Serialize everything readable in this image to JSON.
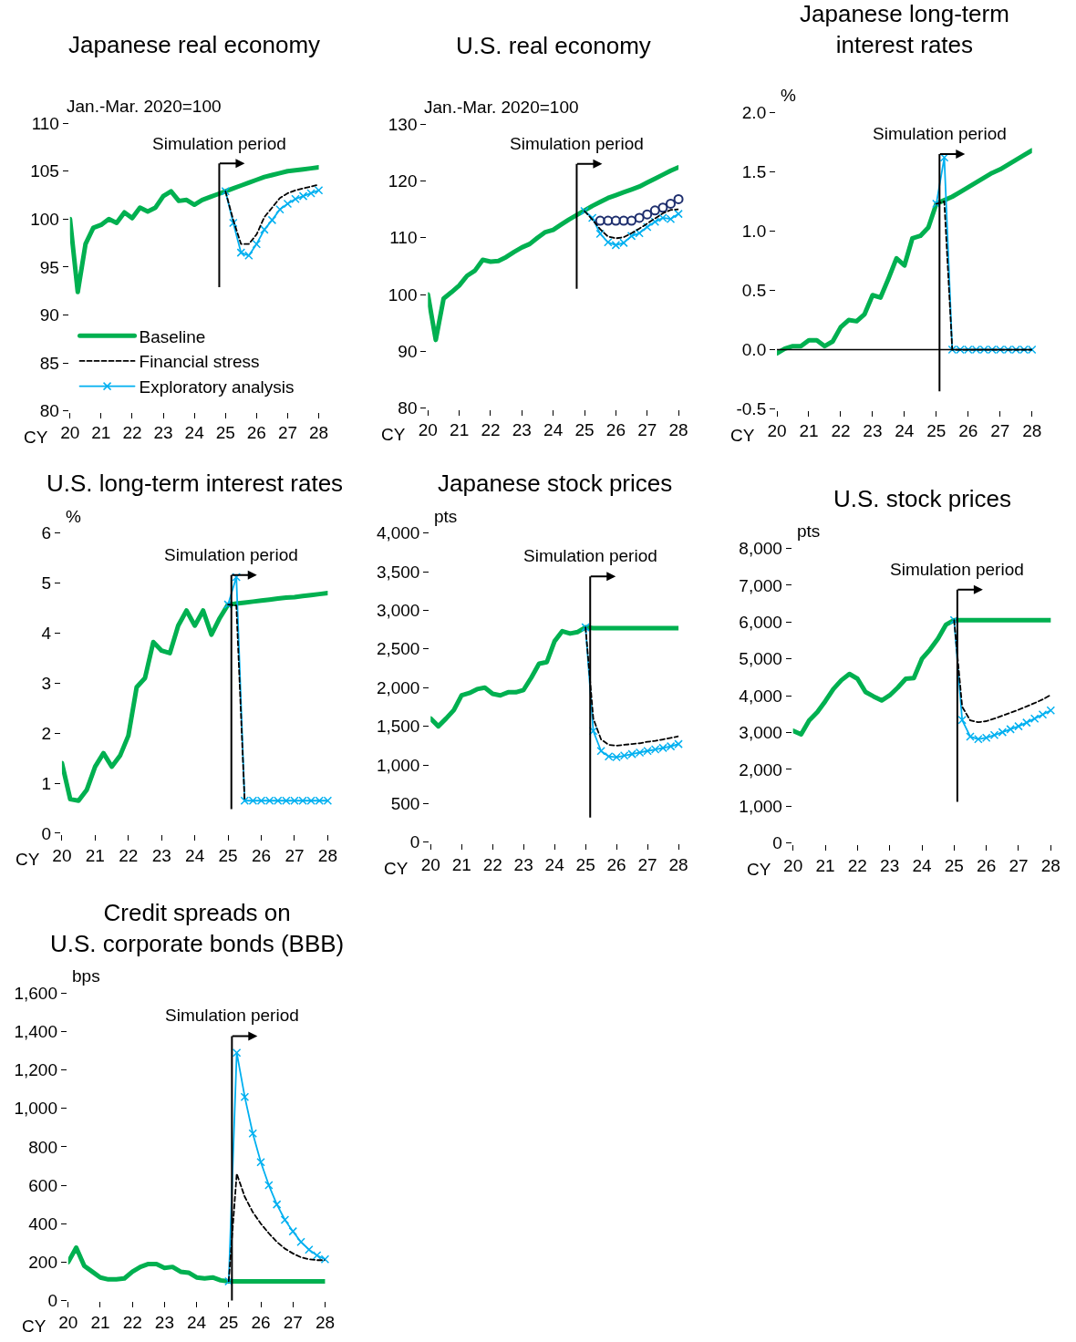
{
  "chart_data": [
    {
      "type": "line",
      "title": "Japanese real economy",
      "ylabel": "Jan.-Mar. 2020=100",
      "xlabel": "CY",
      "x": [
        20,
        20.25,
        20.5,
        20.75,
        21,
        21.25,
        21.5,
        21.75,
        22,
        22.25,
        22.5,
        22.75,
        23,
        23.25,
        23.5,
        23.75,
        24,
        24.25,
        24.5,
        24.75,
        25,
        25.25,
        25.5,
        25.75,
        26,
        26.25,
        26.5,
        26.75,
        27,
        27.25,
        27.5,
        27.75,
        28
      ],
      "xlim": [
        20,
        28
      ],
      "xticks": [
        20,
        21,
        22,
        23,
        24,
        25,
        26,
        27,
        28
      ],
      "ylim": [
        80,
        110
      ],
      "yticks": [
        80,
        85,
        90,
        95,
        100,
        105,
        110
      ],
      "legend": "bottom left",
      "ref_lines": [
        {
          "axis": "x",
          "value": 24.8,
          "label": "Simulation period"
        }
      ],
      "series": [
        {
          "name": "Baseline",
          "color": "#00b050",
          "marker": "none",
          "line_style": "solid",
          "values": [
            100,
            92.4,
            97.4,
            99.1,
            99.4,
            100.0,
            99.6,
            100.7,
            100.1,
            101.2,
            100.8,
            101.2,
            102.4,
            102.9,
            101.9,
            102.0,
            101.5,
            102.0,
            102.3,
            102.6,
            102.9,
            103.2,
            103.5,
            103.8,
            104.1,
            104.4,
            104.6,
            104.8,
            105.0,
            105.1,
            105.2,
            105.3,
            105.4
          ]
        },
        {
          "name": "Financial stress",
          "color": "#000000",
          "marker": "none",
          "line_style": "dashed",
          "values": [
            null,
            null,
            null,
            null,
            null,
            null,
            null,
            null,
            null,
            null,
            null,
            null,
            null,
            null,
            null,
            null,
            null,
            null,
            null,
            null,
            102.9,
            99.9,
            97.4,
            97.4,
            98.4,
            100.2,
            101.2,
            102.2,
            102.7,
            103.0,
            103.2,
            103.4,
            103.6
          ]
        },
        {
          "name": "Exploratory analysis",
          "color": "#00b0f0",
          "marker": "cross",
          "line_style": "solid",
          "values": [
            null,
            null,
            null,
            null,
            null,
            null,
            null,
            null,
            null,
            null,
            null,
            null,
            null,
            null,
            null,
            null,
            null,
            null,
            null,
            null,
            102.9,
            99.6,
            96.5,
            96.2,
            97.4,
            98.9,
            99.9,
            101.0,
            101.6,
            102.1,
            102.4,
            102.7,
            103.0
          ]
        }
      ]
    },
    {
      "type": "line",
      "title": "U.S. real economy",
      "ylabel": "Jan.-Mar. 2020=100",
      "xlabel": "CY",
      "x": [
        20,
        20.25,
        20.5,
        20.75,
        21,
        21.25,
        21.5,
        21.75,
        22,
        22.25,
        22.5,
        22.75,
        23,
        23.25,
        23.5,
        23.75,
        24,
        24.25,
        24.5,
        24.75,
        25,
        25.25,
        25.5,
        25.75,
        26,
        26.25,
        26.5,
        26.75,
        27,
        27.25,
        27.5,
        27.75,
        28
      ],
      "xlim": [
        20,
        28
      ],
      "xticks": [
        20,
        21,
        22,
        23,
        24,
        25,
        26,
        27,
        28
      ],
      "ylim": [
        80,
        130
      ],
      "yticks": [
        80,
        90,
        100,
        110,
        120,
        130
      ],
      "legend": false,
      "ref_lines": [
        {
          "axis": "x",
          "value": 24.75,
          "label": "Simulation period"
        }
      ],
      "series": [
        {
          "color": "#00b050",
          "marker": "none",
          "line_style": "solid",
          "values": [
            100,
            92.0,
            99.3,
            100.4,
            101.6,
            103.3,
            104.2,
            106.1,
            105.8,
            105.9,
            106.6,
            107.5,
            108.3,
            108.9,
            110.0,
            111.0,
            111.4,
            112.3,
            113.2,
            114.0,
            114.8,
            115.6,
            116.3,
            117.0,
            117.5,
            118.0,
            118.5,
            119.0,
            119.7,
            120.4,
            121.1,
            121.8,
            122.4
          ]
        },
        {
          "color": "#000000",
          "marker": "none",
          "line_style": "dashed",
          "values": [
            null,
            null,
            null,
            null,
            null,
            null,
            null,
            null,
            null,
            null,
            null,
            null,
            null,
            null,
            null,
            null,
            null,
            null,
            null,
            null,
            114.7,
            113.2,
            111.5,
            110.2,
            109.9,
            110.1,
            110.8,
            111.6,
            112.5,
            113.4,
            114.3,
            114.9,
            115.0
          ]
        },
        {
          "color": "#00b0f0",
          "marker": "cross",
          "line_style": "solid",
          "values": [
            null,
            null,
            null,
            null,
            null,
            null,
            null,
            null,
            null,
            null,
            null,
            null,
            null,
            null,
            null,
            null,
            null,
            null,
            null,
            null,
            114.7,
            113.5,
            110.7,
            109.2,
            108.7,
            109.1,
            110.3,
            110.8,
            111.9,
            112.8,
            113.5,
            113.3,
            114.2
          ]
        },
        {
          "type": "scatter",
          "color": "#1f2f6e",
          "marker": "circle",
          "values": [
            null,
            null,
            null,
            null,
            null,
            null,
            null,
            null,
            null,
            null,
            null,
            null,
            null,
            null,
            null,
            null,
            null,
            null,
            null,
            null,
            null,
            null,
            113.0,
            113.0,
            113.0,
            113.0,
            113.0,
            113.5,
            114.1,
            114.8,
            115.3,
            116.0,
            116.8
          ]
        }
      ]
    },
    {
      "type": "line",
      "title": "Japanese long-term\ninterest rates",
      "ylabel": "%",
      "xlabel": "CY",
      "x": [
        20,
        20.25,
        20.5,
        20.75,
        21,
        21.25,
        21.5,
        21.75,
        22,
        22.25,
        22.5,
        22.75,
        23,
        23.25,
        23.5,
        23.75,
        24,
        24.25,
        24.5,
        24.75,
        25,
        25.25,
        25.5,
        25.75,
        26,
        26.25,
        26.5,
        26.75,
        27,
        27.25,
        27.5,
        27.75,
        28
      ],
      "xlim": [
        20,
        28
      ],
      "xticks": [
        20,
        21,
        22,
        23,
        24,
        25,
        26,
        27,
        28
      ],
      "ylim": [
        -0.5,
        2.0
      ],
      "yticks": [
        {
          "value": -0.5,
          "label": "-0.5"
        },
        {
          "value": 0,
          "label": "0.0"
        },
        {
          "value": 0.5,
          "label": "0.5"
        },
        {
          "value": 1,
          "label": "1.0"
        },
        {
          "value": 1.5,
          "label": "1.5"
        },
        {
          "value": 2,
          "label": "2.0"
        }
      ],
      "legend": false,
      "ref_lines": [
        {
          "axis": "x",
          "value": 25.1,
          "label": "Simulation period"
        },
        {
          "axis": "y",
          "value": 0
        }
      ],
      "series": [
        {
          "color": "#00b050",
          "marker": "none",
          "line_style": "solid",
          "values": [
            -0.03,
            0.01,
            0.03,
            0.03,
            0.08,
            0.08,
            0.03,
            0.07,
            0.19,
            0.25,
            0.24,
            0.3,
            0.46,
            0.44,
            0.6,
            0.77,
            0.71,
            0.94,
            0.96,
            1.03,
            1.23,
            1.26,
            1.29,
            1.33,
            1.37,
            1.41,
            1.45,
            1.49,
            1.52,
            1.56,
            1.6,
            1.64,
            1.68
          ]
        },
        {
          "color": "#000000",
          "marker": "none",
          "line_style": "dashed",
          "values": [
            null,
            null,
            null,
            null,
            null,
            null,
            null,
            null,
            null,
            null,
            null,
            null,
            null,
            null,
            null,
            null,
            null,
            null,
            null,
            null,
            1.23,
            1.25,
            0,
            0,
            0,
            0,
            0,
            0,
            0,
            0,
            0,
            0,
            0
          ]
        },
        {
          "color": "#00b0f0",
          "marker": "cross",
          "line_style": "solid",
          "values": [
            null,
            null,
            null,
            null,
            null,
            null,
            null,
            null,
            null,
            null,
            null,
            null,
            null,
            null,
            null,
            null,
            null,
            null,
            null,
            null,
            1.23,
            1.62,
            0,
            0,
            0,
            0,
            0,
            0,
            0,
            0,
            0,
            0,
            0
          ]
        }
      ]
    },
    {
      "type": "line",
      "title": "U.S. long-term interest rates",
      "ylabel": "%",
      "xlabel": "CY",
      "x": [
        20,
        20.25,
        20.5,
        20.75,
        21,
        21.25,
        21.5,
        21.75,
        22,
        22.25,
        22.5,
        22.75,
        23,
        23.25,
        23.5,
        23.75,
        24,
        24.25,
        24.5,
        24.75,
        25,
        25.25,
        25.5,
        25.75,
        26,
        26.25,
        26.5,
        26.75,
        27,
        27.25,
        27.5,
        27.75,
        28
      ],
      "xlim": [
        20,
        28
      ],
      "xticks": [
        20,
        21,
        22,
        23,
        24,
        25,
        26,
        27,
        28
      ],
      "ylim": [
        0,
        6
      ],
      "yticks": [
        0,
        1,
        2,
        3,
        4,
        5,
        6
      ],
      "legend": false,
      "ref_lines": [
        {
          "axis": "x",
          "value": 25.1,
          "label": "Simulation period"
        }
      ],
      "series": [
        {
          "color": "#00b050",
          "marker": "none",
          "line_style": "solid",
          "values": [
            1.4,
            0.68,
            0.65,
            0.87,
            1.33,
            1.6,
            1.33,
            1.55,
            1.95,
            2.92,
            3.1,
            3.82,
            3.65,
            3.6,
            4.15,
            4.45,
            4.15,
            4.45,
            3.97,
            4.3,
            4.57,
            4.59,
            4.61,
            4.63,
            4.65,
            4.67,
            4.69,
            4.71,
            4.72,
            4.74,
            4.76,
            4.78,
            4.8
          ]
        },
        {
          "color": "#000000",
          "marker": "none",
          "line_style": "dashed",
          "values": [
            null,
            null,
            null,
            null,
            null,
            null,
            null,
            null,
            null,
            null,
            null,
            null,
            null,
            null,
            null,
            null,
            null,
            null,
            null,
            null,
            4.57,
            4.55,
            0.65,
            null,
            null,
            null,
            null,
            null,
            null,
            null,
            null,
            null,
            null
          ]
        },
        {
          "color": "#00b0f0",
          "marker": "cross",
          "line_style": "solid",
          "values": [
            null,
            null,
            null,
            null,
            null,
            null,
            null,
            null,
            null,
            null,
            null,
            null,
            null,
            null,
            null,
            null,
            null,
            null,
            null,
            null,
            4.57,
            5.12,
            0.65,
            0.65,
            0.65,
            0.65,
            0.65,
            0.65,
            0.65,
            0.65,
            0.65,
            0.65,
            0.65
          ]
        }
      ]
    },
    {
      "type": "line",
      "title": "Japanese stock prices",
      "ylabel": "pts",
      "xlabel": "CY",
      "x": [
        20,
        20.25,
        20.5,
        20.75,
        21,
        21.25,
        21.5,
        21.75,
        22,
        22.25,
        22.5,
        22.75,
        23,
        23.25,
        23.5,
        23.75,
        24,
        24.25,
        24.5,
        24.75,
        25,
        25.25,
        25.5,
        25.75,
        26,
        26.25,
        26.5,
        26.75,
        27,
        27.25,
        27.5,
        27.75,
        28
      ],
      "xlim": [
        20,
        28
      ],
      "xticks": [
        20,
        21,
        22,
        23,
        24,
        25,
        26,
        27,
        28
      ],
      "ylim": [
        0,
        4000
      ],
      "yticks": [
        {
          "value": 0,
          "label": "0"
        },
        {
          "value": 500,
          "label": "500"
        },
        {
          "value": 1000,
          "label": "1,000"
        },
        {
          "value": 1500,
          "label": "1,500"
        },
        {
          "value": 2000,
          "label": "2,000"
        },
        {
          "value": 2500,
          "label": "2,500"
        },
        {
          "value": 3000,
          "label": "3,000"
        },
        {
          "value": 3500,
          "label": "3,500"
        },
        {
          "value": 4000,
          "label": "4,000"
        }
      ],
      "legend": false,
      "ref_lines": [
        {
          "axis": "x",
          "value": 25.15,
          "label": "Simulation period"
        }
      ],
      "series": [
        {
          "color": "#00b050",
          "marker": "none",
          "line_style": "solid",
          "values": [
            1600,
            1500,
            1600,
            1710,
            1900,
            1930,
            1980,
            2000,
            1920,
            1900,
            1940,
            1940,
            1970,
            2130,
            2310,
            2330,
            2600,
            2730,
            2700,
            2720,
            2780,
            2770,
            2770,
            2770,
            2770,
            2770,
            2770,
            2770,
            2770,
            2770,
            2770,
            2770,
            2770
          ]
        },
        {
          "color": "#000000",
          "marker": "none",
          "line_style": "dashed",
          "values": [
            null,
            null,
            null,
            null,
            null,
            null,
            null,
            null,
            null,
            null,
            null,
            null,
            null,
            null,
            null,
            null,
            null,
            null,
            null,
            null,
            2780,
            1600,
            1330,
            1260,
            1250,
            1260,
            1270,
            1280,
            1300,
            1310,
            1330,
            1350,
            1370
          ]
        },
        {
          "color": "#00b0f0",
          "marker": "cross",
          "line_style": "solid",
          "values": [
            null,
            null,
            null,
            null,
            null,
            null,
            null,
            null,
            null,
            null,
            null,
            null,
            null,
            null,
            null,
            null,
            null,
            null,
            null,
            null,
            2780,
            1440,
            1180,
            1110,
            1100,
            1120,
            1140,
            1160,
            1180,
            1200,
            1220,
            1240,
            1270
          ]
        }
      ]
    },
    {
      "type": "line",
      "title": "U.S. stock prices",
      "ylabel": "pts",
      "xlabel": "CY",
      "x": [
        20,
        20.25,
        20.5,
        20.75,
        21,
        21.25,
        21.5,
        21.75,
        22,
        22.25,
        22.5,
        22.75,
        23,
        23.25,
        23.5,
        23.75,
        24,
        24.25,
        24.5,
        24.75,
        25,
        25.25,
        25.5,
        25.75,
        26,
        26.25,
        26.5,
        26.75,
        27,
        27.25,
        27.5,
        27.75,
        28
      ],
      "xlim": [
        20,
        28
      ],
      "xticks": [
        20,
        21,
        22,
        23,
        24,
        25,
        26,
        27,
        28
      ],
      "ylim": [
        0,
        8000
      ],
      "yticks": [
        {
          "value": 0,
          "label": "0"
        },
        {
          "value": 1000,
          "label": "1,000"
        },
        {
          "value": 2000,
          "label": "2,000"
        },
        {
          "value": 3000,
          "label": "3,000"
        },
        {
          "value": 4000,
          "label": "4,000"
        },
        {
          "value": 5000,
          "label": "5,000"
        },
        {
          "value": 6000,
          "label": "6,000"
        },
        {
          "value": 7000,
          "label": "7,000"
        },
        {
          "value": 8000,
          "label": "8,000"
        }
      ],
      "legend": false,
      "ref_lines": [
        {
          "axis": "x",
          "value": 25.1,
          "label": "Simulation period"
        }
      ],
      "series": [
        {
          "color": "#00b050",
          "marker": "none",
          "line_style": "solid",
          "values": [
            3050,
            2950,
            3330,
            3550,
            3850,
            4180,
            4420,
            4590,
            4460,
            4100,
            3980,
            3870,
            4010,
            4220,
            4460,
            4480,
            5000,
            5250,
            5550,
            5930,
            6050,
            6050,
            6050,
            6050,
            6050,
            6050,
            6050,
            6050,
            6050,
            6050,
            6050,
            6050,
            6050
          ]
        },
        {
          "color": "#000000",
          "marker": "none",
          "line_style": "dashed",
          "values": [
            null,
            null,
            null,
            null,
            null,
            null,
            null,
            null,
            null,
            null,
            null,
            null,
            null,
            null,
            null,
            null,
            null,
            null,
            null,
            null,
            6050,
            3700,
            3330,
            3280,
            3310,
            3380,
            3460,
            3540,
            3620,
            3710,
            3800,
            3900,
            4020
          ]
        },
        {
          "color": "#00b0f0",
          "marker": "cross",
          "line_style": "solid",
          "values": [
            null,
            null,
            null,
            null,
            null,
            null,
            null,
            null,
            null,
            null,
            null,
            null,
            null,
            null,
            null,
            null,
            null,
            null,
            null,
            null,
            6050,
            3340,
            2890,
            2820,
            2860,
            2930,
            3010,
            3090,
            3170,
            3270,
            3380,
            3490,
            3600
          ]
        }
      ]
    },
    {
      "type": "line",
      "title": "Credit spreads on\nU.S. corporate bonds (BBB)",
      "ylabel": "bps",
      "xlabel": "CY",
      "x": [
        20,
        20.25,
        20.5,
        20.75,
        21,
        21.25,
        21.5,
        21.75,
        22,
        22.25,
        22.5,
        22.75,
        23,
        23.25,
        23.5,
        23.75,
        24,
        24.25,
        24.5,
        24.75,
        25,
        25.25,
        25.5,
        25.75,
        26,
        26.25,
        26.5,
        26.75,
        27,
        27.25,
        27.5,
        27.75,
        28
      ],
      "xlim": [
        20,
        28
      ],
      "xticks": [
        20,
        21,
        22,
        23,
        24,
        25,
        26,
        27,
        28
      ],
      "ylim": [
        0,
        1600
      ],
      "yticks": [
        {
          "value": 0,
          "label": "0"
        },
        {
          "value": 200,
          "label": "200"
        },
        {
          "value": 400,
          "label": "400"
        },
        {
          "value": 600,
          "label": "600"
        },
        {
          "value": 800,
          "label": "800"
        },
        {
          "value": 1000,
          "label": "1,000"
        },
        {
          "value": 1200,
          "label": "1,200"
        },
        {
          "value": 1400,
          "label": "1,400"
        },
        {
          "value": 1600,
          "label": "1,600"
        }
      ],
      "legend": false,
      "ref_lines": [
        {
          "axis": "x",
          "value": 25.1,
          "label": "Simulation period"
        }
      ],
      "series": [
        {
          "color": "#00b050",
          "marker": "none",
          "line_style": "solid",
          "values": [
            200,
            275,
            180,
            150,
            120,
            110,
            110,
            115,
            150,
            175,
            190,
            190,
            170,
            175,
            150,
            145,
            120,
            115,
            120,
            105,
            100,
            100,
            100,
            100,
            100,
            100,
            100,
            100,
            100,
            100,
            100,
            100,
            100
          ]
        },
        {
          "color": "#000000",
          "marker": "none",
          "line_style": "dashed",
          "values": [
            null,
            null,
            null,
            null,
            null,
            null,
            null,
            null,
            null,
            null,
            null,
            null,
            null,
            null,
            null,
            null,
            null,
            null,
            null,
            null,
            100,
            660,
            540,
            460,
            400,
            350,
            305,
            270,
            245,
            225,
            215,
            210,
            210
          ]
        },
        {
          "color": "#00b0f0",
          "marker": "cross",
          "line_style": "solid",
          "values": [
            null,
            null,
            null,
            null,
            null,
            null,
            null,
            null,
            null,
            null,
            null,
            null,
            null,
            null,
            null,
            null,
            null,
            null,
            null,
            null,
            100,
            1290,
            1060,
            870,
            720,
            600,
            500,
            420,
            360,
            305,
            265,
            235,
            215
          ]
        }
      ]
    }
  ]
}
